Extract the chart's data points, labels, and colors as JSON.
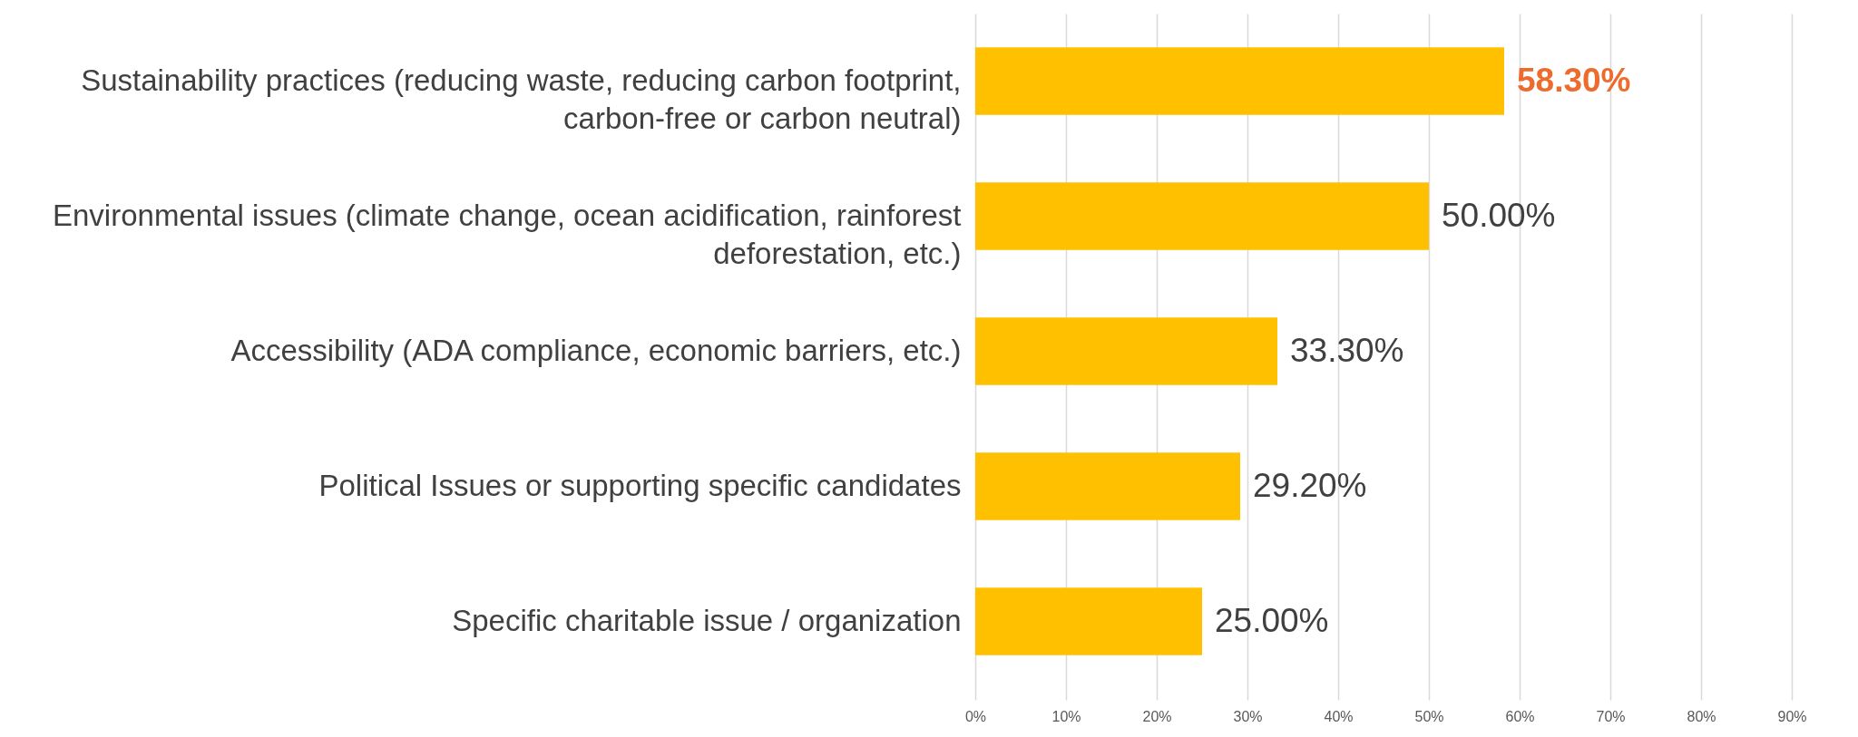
{
  "chart_data": {
    "type": "bar",
    "orientation": "horizontal",
    "categories": [
      "Sustainability practices (reducing waste, reducing carbon footprint, carbon-free or carbon neutral)",
      "Environmental issues (climate change, ocean acidification, rainforest deforestation, etc.)",
      "Accessibility (ADA compliance, economic barriers, etc.)",
      "Political Issues or supporting specific candidates",
      "Specific charitable issue / organization"
    ],
    "values": [
      58.3,
      50,
      33.3,
      29.2,
      25
    ],
    "color": "#ffc000",
    "value_labels": [
      "58.30%",
      "50.00%",
      "33.30%",
      "29.20%",
      "25.00%"
    ],
    "xlim": [
      0,
      90
    ],
    "xticks": [
      {
        "value": 0,
        "label": "0%"
      },
      {
        "value": 10,
        "label": "10%"
      },
      {
        "value": 20,
        "label": "20%"
      },
      {
        "value": 30,
        "label": "30%"
      },
      {
        "value": 40,
        "label": "40%"
      },
      {
        "value": 50,
        "label": "50%"
      },
      {
        "value": 60,
        "label": "60%"
      },
      {
        "value": 70,
        "label": "70%"
      },
      {
        "value": 80,
        "label": "80%"
      },
      {
        "value": 90,
        "label": "90%"
      }
    ],
    "grid": "x"
  }
}
